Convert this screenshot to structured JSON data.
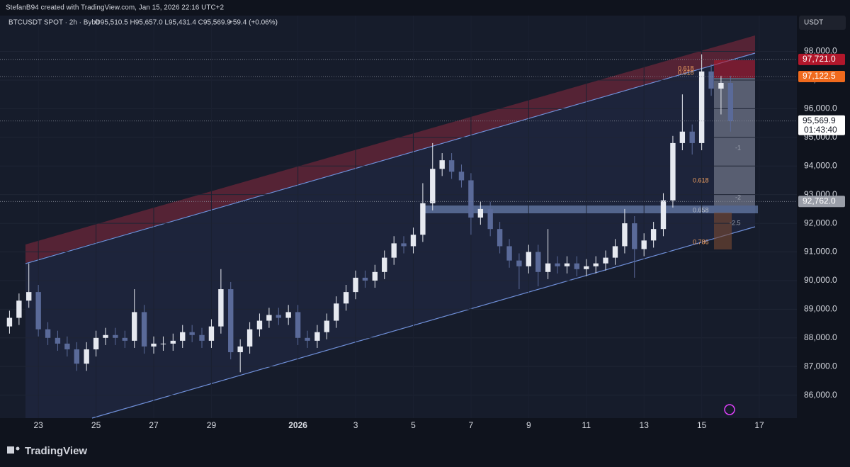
{
  "header": {
    "credit": "StefanB94 created with TradingView.com, Jan 15, 2026 22:16 UTC+2",
    "symbol": "BTCUSDT SPOT · 2h · Bybit",
    "ohlc": "O95,510.5  H95,657.0  L95,431.4  C95,569.9",
    "change": "+59.4 (+0.06%)",
    "currency": "USDT"
  },
  "footer": {
    "brand": "TradingView"
  },
  "chart_data": {
    "type": "candlestick",
    "up_color": "#e6e9f0",
    "down_color": "#5a6a99",
    "x": [
      -1,
      -0.67,
      -0.33,
      0,
      0.33,
      0.67,
      1,
      1.33,
      1.67,
      2,
      2.33,
      2.67,
      3,
      3.33,
      3.67,
      4,
      4.33,
      4.67,
      5,
      5.33,
      5.67,
      6,
      6.33,
      6.67,
      7,
      7.33,
      7.67,
      8,
      8.33,
      8.67,
      9,
      9.33,
      9.67,
      10,
      10.33,
      10.67,
      11,
      11.33,
      11.67,
      12,
      12.33,
      12.67,
      13,
      13.33,
      13.67,
      14,
      14.33,
      14.67,
      15,
      15.33,
      15.67,
      16,
      16.33,
      16.67,
      17,
      17.33,
      17.67,
      18,
      18.33,
      18.67,
      19,
      19.33,
      19.67,
      20,
      20.33,
      20.67,
      21,
      21.33,
      21.67,
      22,
      22.33,
      22.67,
      23,
      23.33,
      23.67,
      24
    ],
    "open": [
      88400,
      88700,
      89300,
      89600,
      88300,
      88000,
      87800,
      87600,
      87100,
      87600,
      88000,
      88100,
      88000,
      87900,
      88900,
      87700,
      87800,
      87800,
      87900,
      88200,
      88100,
      87900,
      88400,
      89700,
      87500,
      87700,
      88300,
      88600,
      88800,
      88700,
      88900,
      88000,
      87900,
      88200,
      88600,
      89200,
      89600,
      90100,
      90000,
      90300,
      90800,
      91300,
      91200,
      91600,
      92700,
      93900,
      94200,
      93800,
      93500,
      92200,
      92500,
      91800,
      91200,
      90700,
      90500,
      91000,
      90300,
      90600,
      90500,
      90600,
      90400,
      90500,
      90600,
      90800,
      91200,
      92000,
      91100,
      91400,
      91800,
      92800,
      94800,
      95200,
      94800,
      97300,
      96700,
      96900
    ],
    "high": [
      88950,
      89550,
      90600,
      89850,
      88550,
      88250,
      88050,
      87850,
      87850,
      88250,
      88350,
      88350,
      88250,
      89700,
      89150,
      88050,
      88050,
      88150,
      88450,
      88450,
      88350,
      88650,
      90400,
      89950,
      87950,
      88550,
      88850,
      89050,
      89050,
      89150,
      89150,
      88250,
      88450,
      88850,
      89450,
      89850,
      90350,
      90350,
      90550,
      91050,
      91550,
      91550,
      91850,
      93400,
      94800,
      94450,
      94450,
      94050,
      93750,
      92750,
      92750,
      92050,
      91450,
      90950,
      91250,
      91250,
      91800,
      90850,
      90850,
      90850,
      90750,
      90850,
      91050,
      91450,
      92500,
      92250,
      91650,
      92050,
      93050,
      95050,
      96500,
      95450,
      97900,
      97550,
      97150,
      97150
    ],
    "low": [
      88150,
      88450,
      89050,
      88050,
      87750,
      87550,
      87350,
      86850,
      86850,
      87350,
      87750,
      87750,
      87650,
      87650,
      87450,
      87450,
      87550,
      87550,
      87650,
      87850,
      87650,
      87650,
      88150,
      87250,
      86800,
      87450,
      88050,
      88350,
      88450,
      88450,
      87750,
      87650,
      87650,
      87950,
      88350,
      88950,
      89350,
      89750,
      89750,
      90050,
      90550,
      90950,
      90950,
      91350,
      92450,
      93650,
      93550,
      93250,
      91600,
      91950,
      91550,
      90950,
      90450,
      89700,
      90250,
      89800,
      90050,
      90250,
      90250,
      90150,
      90150,
      90250,
      90350,
      90550,
      90950,
      90100,
      90850,
      91150,
      91550,
      92550,
      94550,
      94400,
      94550,
      96450,
      95800,
      95200
    ],
    "close": [
      88700,
      89300,
      89600,
      88300,
      88000,
      87800,
      87600,
      87100,
      87600,
      88000,
      88100,
      88000,
      87900,
      88900,
      87700,
      87800,
      87800,
      87900,
      88200,
      88100,
      87900,
      88400,
      89700,
      87500,
      87700,
      88300,
      88600,
      88800,
      88700,
      88900,
      88000,
      87900,
      88200,
      88600,
      89200,
      89600,
      90100,
      90000,
      90300,
      90800,
      91300,
      91200,
      91600,
      92700,
      93900,
      94200,
      93800,
      93500,
      92200,
      92500,
      91800,
      91200,
      90700,
      90500,
      91000,
      90300,
      90600,
      90500,
      90600,
      90400,
      90500,
      90600,
      90800,
      91200,
      92000,
      91100,
      91400,
      91800,
      92800,
      94800,
      95200,
      94800,
      97300,
      96700,
      96900,
      95569.9
    ],
    "xlim": [
      -1.33,
      26.3
    ],
    "xticks": [
      {
        "value": 0,
        "label": "23"
      },
      {
        "value": 2,
        "label": "25"
      },
      {
        "value": 4,
        "label": "27"
      },
      {
        "value": 6,
        "label": "29"
      },
      {
        "value": 9,
        "label": "2026"
      },
      {
        "value": 11,
        "label": "3"
      },
      {
        "value": 13,
        "label": "5"
      },
      {
        "value": 15,
        "label": "7"
      },
      {
        "value": 17,
        "label": "9"
      },
      {
        "value": 19,
        "label": "11"
      },
      {
        "value": 21,
        "label": "13"
      },
      {
        "value": 23,
        "label": "15"
      },
      {
        "value": 25,
        "label": "17"
      }
    ],
    "ylim": [
      85200,
      99250
    ],
    "yticks": [
      {
        "value": 86000,
        "label": "86,000.0"
      },
      {
        "value": 87000,
        "label": "87,000.0"
      },
      {
        "value": 88000,
        "label": "88,000.0"
      },
      {
        "value": 89000,
        "label": "89,000.0"
      },
      {
        "value": 90000,
        "label": "90,000.0"
      },
      {
        "value": 91000,
        "label": "91,000.0"
      },
      {
        "value": 92000,
        "label": "92,000.0"
      },
      {
        "value": 93000,
        "label": "93,000.0"
      },
      {
        "value": 94000,
        "label": "94,000.0"
      },
      {
        "value": 95000,
        "label": "95,000.0"
      },
      {
        "value": 96000,
        "label": "96,000.0"
      },
      {
        "value": 97000,
        "label": "97,000.0"
      },
      {
        "value": 98000,
        "label": "98,000.0"
      }
    ],
    "price_labels": [
      {
        "value": 97721,
        "label": "97,721.0",
        "color": "#b2172b"
      },
      {
        "value": 97122.5,
        "label": "97,122.5",
        "color": "#f06a1d"
      },
      {
        "value": 95569.9,
        "label": "95,569.9",
        "color": "#ffffff"
      },
      {
        "value": 92762,
        "label": "92,762.0",
        "color": "#9a9ea8"
      }
    ],
    "countdown": "01:43:40",
    "annotations": [
      "0.618",
      "0.618",
      "-1",
      "-2",
      "0.618",
      "0.658",
      "-2.5",
      "0.786"
    ]
  }
}
